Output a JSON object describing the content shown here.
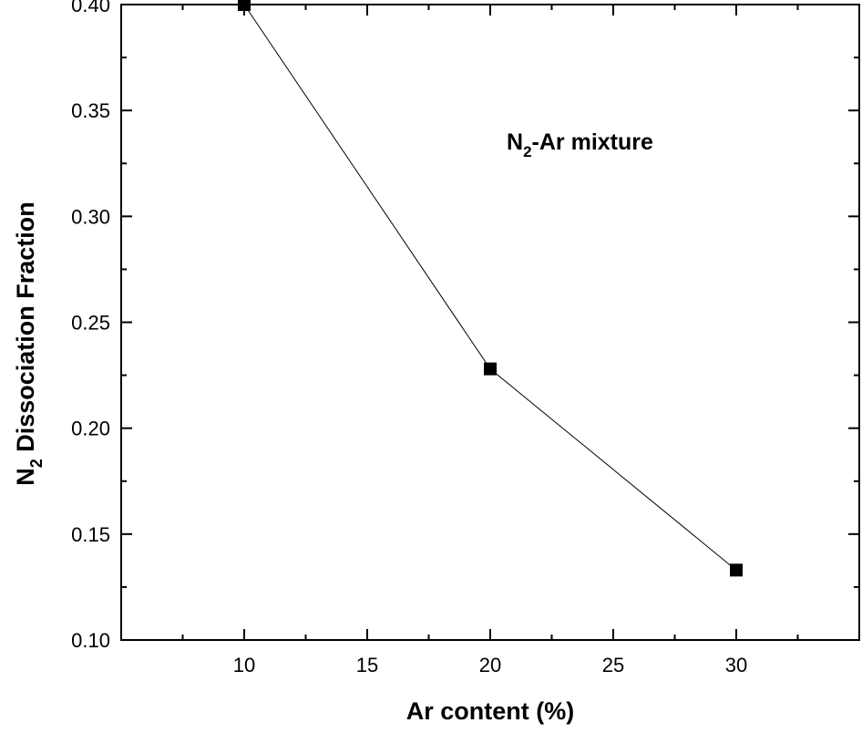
{
  "chart_data": {
    "type": "line",
    "title": "",
    "xlabel": "Ar content (%)",
    "ylabel": {
      "prefix": "N",
      "subscript": "2",
      "suffix": " Dissociation Fraction"
    },
    "annotation": {
      "prefix": "N",
      "subscript": "2",
      "suffix": "-Ar mixture"
    },
    "xlim": [
      5,
      35
    ],
    "ylim": [
      0.1,
      0.4
    ],
    "x_ticks": [
      "10",
      "15",
      "20",
      "25",
      "30"
    ],
    "y_ticks": [
      "0.10",
      "0.15",
      "0.20",
      "0.25",
      "0.30",
      "0.35",
      "0.40"
    ],
    "series": [
      {
        "marker": "square",
        "color": "#000000",
        "x": [
          10,
          20,
          30
        ],
        "y": [
          0.4,
          0.228,
          0.133
        ]
      }
    ],
    "grid": false,
    "legend": false
  }
}
